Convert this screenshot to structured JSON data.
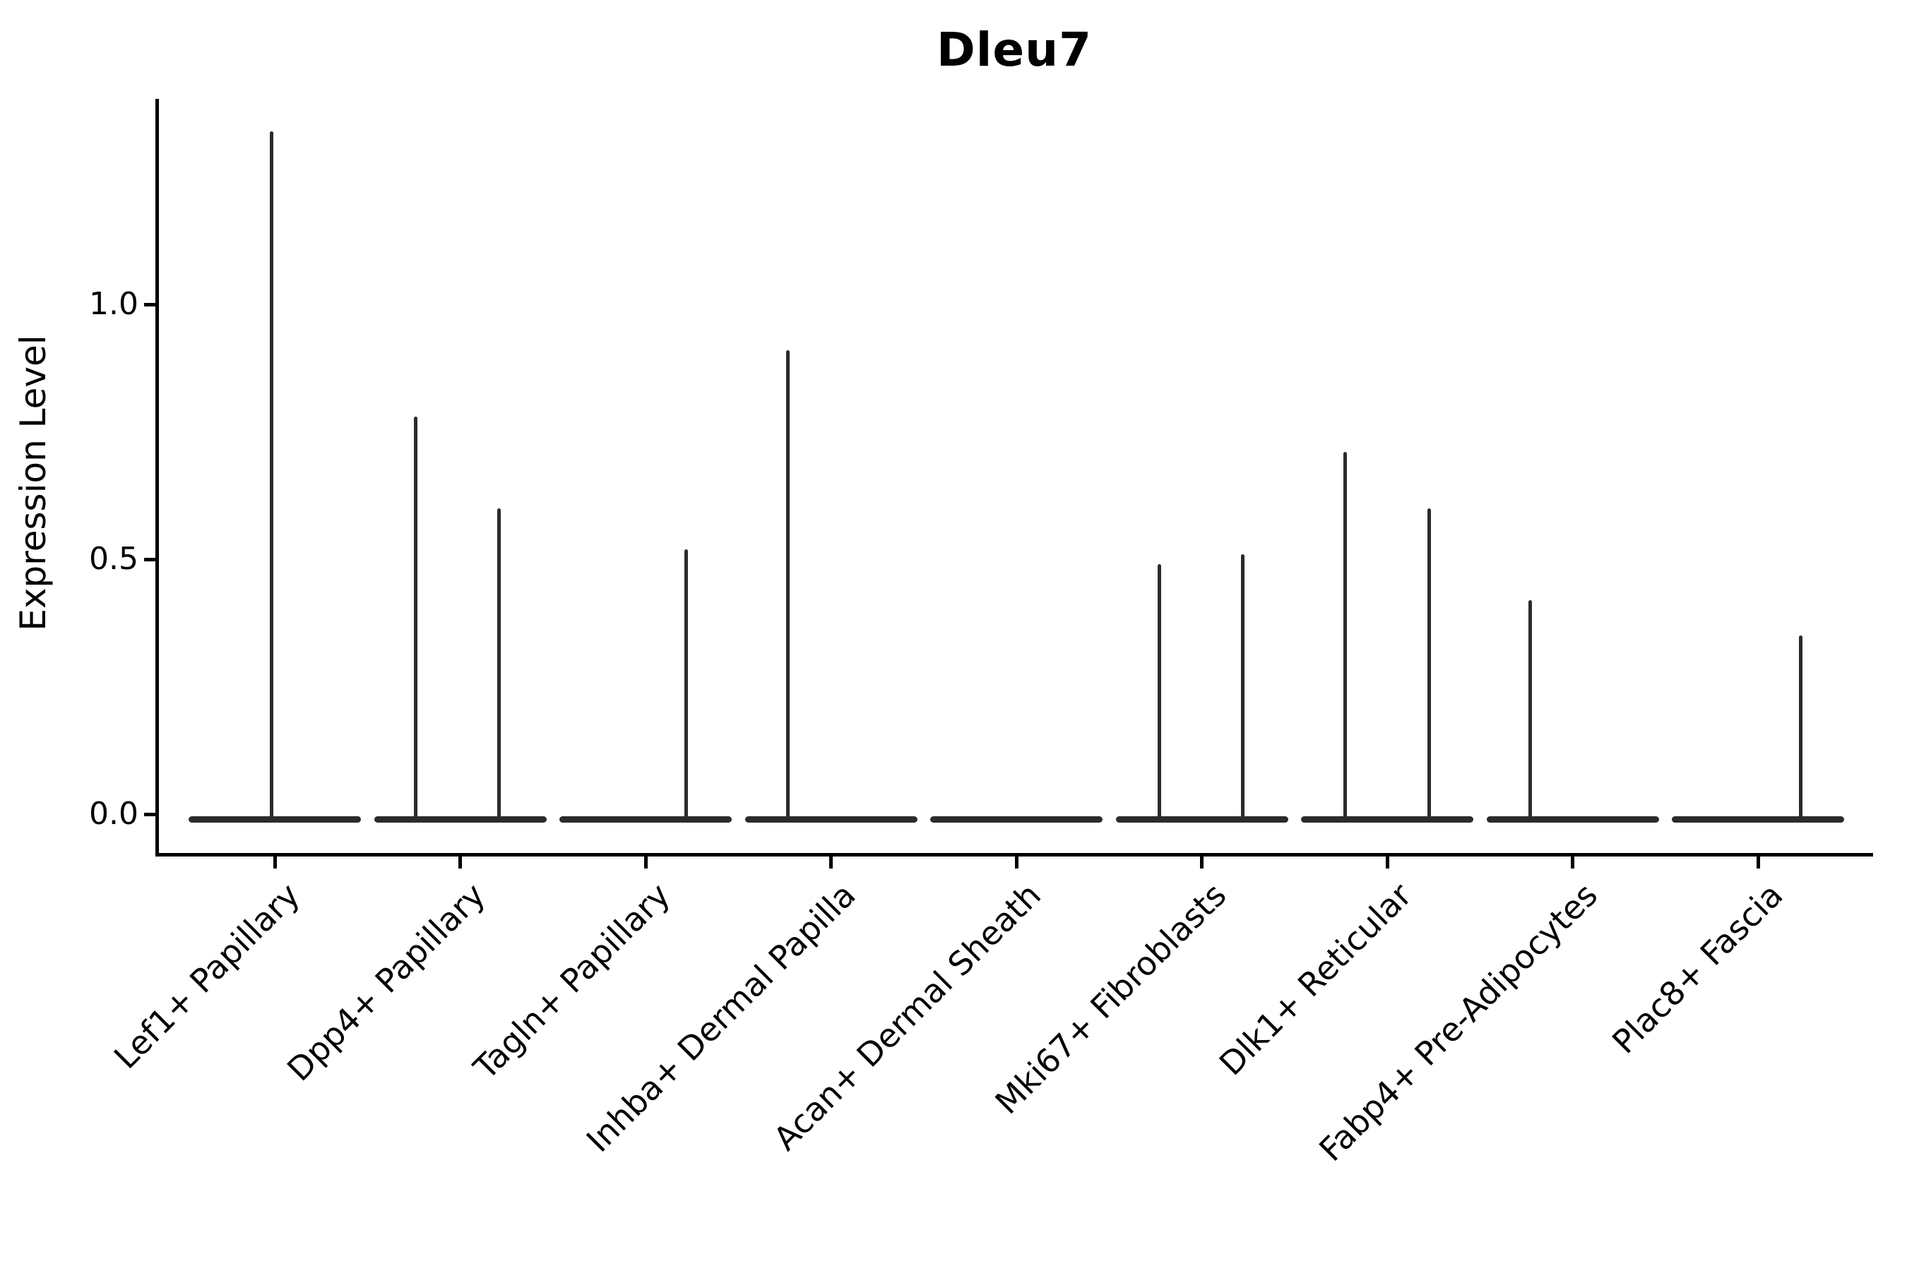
{
  "figure": {
    "title": "Dleu7",
    "ylabel": "Expression Level"
  },
  "chart_data": {
    "type": "violin",
    "title": "Dleu7",
    "xlabel": "",
    "ylabel": "Expression Level",
    "ylim": [
      -0.08,
      1.41
    ],
    "ytick_labels": [
      "0.0",
      "0.5",
      "1.0"
    ],
    "ytick_values": [
      0.0,
      0.5,
      1.0
    ],
    "grid": false,
    "legend": false,
    "background_color": "#ffffff",
    "axis_color": "#000000",
    "violin_color": "#2b2b2b",
    "categories": [
      "Lef1+ Papillary",
      "Dpp4+ Papillary",
      "Tagln+ Papillary",
      "Inhba+ Dermal Papilla",
      "Acan+ Dermal Sheath",
      "Mki67+ Fibroblasts",
      "Dlk1+ Reticular",
      "Fabp4+ Pre-Adipocytes",
      "Plac8+ Fascia"
    ],
    "violins": [
      {
        "category": "Lef1+ Papillary",
        "base_value": 0.0,
        "spikes": [
          {
            "value": 1.34,
            "dx": -5
          }
        ]
      },
      {
        "category": "Dpp4+ Papillary",
        "base_value": 0.0,
        "spikes": [
          {
            "value": 0.78,
            "dx": -63
          },
          {
            "value": 0.6,
            "dx": 55
          }
        ]
      },
      {
        "category": "Tagln+ Papillary",
        "base_value": 0.0,
        "spikes": [
          {
            "value": 0.52,
            "dx": 57
          }
        ]
      },
      {
        "category": "Inhba+ Dermal Papilla",
        "base_value": 0.0,
        "spikes": [
          {
            "value": 0.91,
            "dx": -61
          }
        ]
      },
      {
        "category": "Acan+ Dermal Sheath",
        "base_value": 0.0,
        "spikes": []
      },
      {
        "category": "Mki67+ Fibroblasts",
        "base_value": 0.0,
        "spikes": [
          {
            "value": 0.49,
            "dx": -60
          },
          {
            "value": 0.51,
            "dx": 58
          }
        ]
      },
      {
        "category": "Dlk1+ Reticular",
        "base_value": 0.0,
        "spikes": [
          {
            "value": 0.71,
            "dx": -60
          },
          {
            "value": 0.6,
            "dx": 59
          }
        ]
      },
      {
        "category": "Fabp4+ Pre-Adipocytes",
        "base_value": 0.0,
        "spikes": [
          {
            "value": 0.42,
            "dx": -60
          }
        ]
      },
      {
        "category": "Plac8+ Fascia",
        "base_value": 0.0,
        "spikes": [
          {
            "value": 0.35,
            "dx": 60
          }
        ]
      }
    ]
  }
}
